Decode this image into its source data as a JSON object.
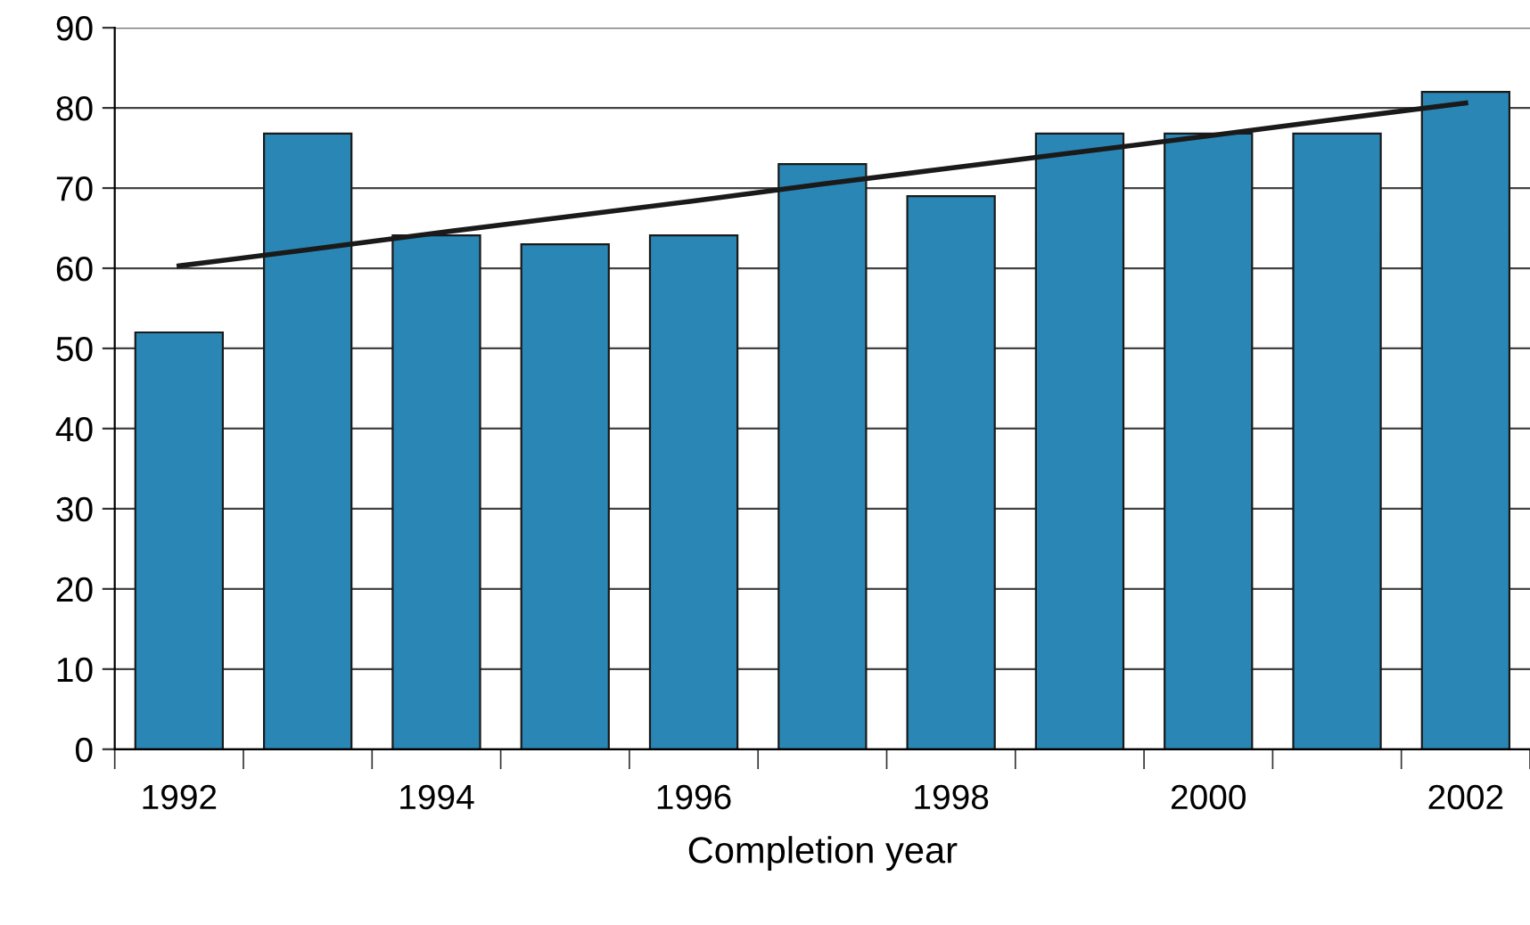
{
  "chart_data": {
    "type": "bar",
    "xlabel": "Completion year",
    "categories": [
      "1992",
      null,
      "1994",
      null,
      "1996",
      null,
      "1998",
      null,
      "2000",
      null,
      "2002"
    ],
    "series": [
      {
        "color": "#2a87b5",
        "values": [
          52,
          76.8,
          64.1,
          63,
          64.1,
          73,
          69,
          76.8,
          76.8,
          76.8,
          82
        ]
      },
      {
        "type": "line",
        "color": "#1a1a1a",
        "values": [
          60.3,
          62.3,
          64.4,
          66.4,
          68.4,
          70.5,
          72.5,
          74.5,
          76.5,
          78.6,
          80.6
        ]
      }
    ],
    "ylim": [
      0,
      90
    ],
    "yticks": [
      0,
      10,
      20,
      30,
      40,
      50,
      60,
      70,
      80,
      90
    ],
    "grid": "y",
    "legend": false
  }
}
